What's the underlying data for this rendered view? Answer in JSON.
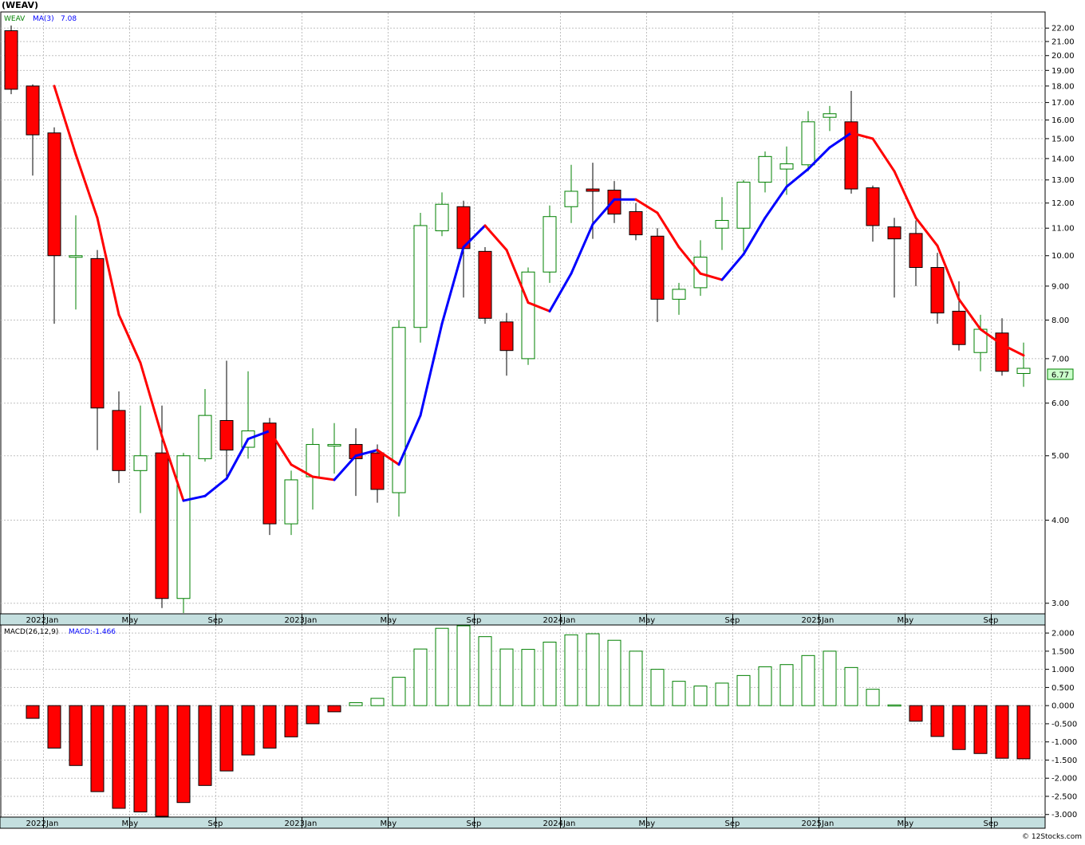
{
  "symbol_title": "(WEAV)",
  "price_legend": {
    "symbol": "WEAV",
    "ma_label": "MA(3)",
    "ma_value": "7.08"
  },
  "macd_legend": {
    "label": "MACD(26,12,9)",
    "value_label": "MACD:-1.466"
  },
  "last_price_label": "6.77",
  "watermark": "© 12Stocks.com",
  "colors": {
    "up": "#008000",
    "down": "#ff0000",
    "ma_up": "#0000ff",
    "ma_down": "#ff0000",
    "grid": "#c0c0c0",
    "band": "#c4dfdf"
  },
  "chart_data": [
    {
      "type": "candlestick",
      "title": "(WEAV)",
      "scale": "log",
      "ylim": [
        2.9,
        23.2
      ],
      "y_ticks": [
        "22.00",
        "21.00",
        "20.00",
        "19.00",
        "18.00",
        "17.00",
        "16.00",
        "15.00",
        "14.00",
        "13.00",
        "12.00",
        "11.00",
        "10.00",
        "9.00",
        "8.00",
        "7.00",
        "6.00",
        "5.00",
        "4.00",
        "3.00"
      ],
      "x_labels": [
        "2022Jan",
        "May",
        "Sep",
        "2023Jan",
        "May",
        "Sep",
        "2024Jan",
        "May",
        "Sep",
        "2025Jan",
        "May",
        "Sep"
      ],
      "months": [
        "2021-11",
        "2021-12",
        "2022-01",
        "2022-02",
        "2022-03",
        "2022-04",
        "2022-05",
        "2022-06",
        "2022-07",
        "2022-08",
        "2022-09",
        "2022-10",
        "2022-11",
        "2022-12",
        "2023-01",
        "2023-02",
        "2023-03",
        "2023-04",
        "2023-05",
        "2023-06",
        "2023-07",
        "2023-08",
        "2023-09",
        "2023-10",
        "2023-11",
        "2023-12",
        "2024-01",
        "2024-02",
        "2024-03",
        "2024-04",
        "2024-05",
        "2024-06",
        "2024-07",
        "2024-08",
        "2024-09",
        "2024-10",
        "2024-11",
        "2024-12",
        "2025-01",
        "2025-02",
        "2025-03",
        "2025-04",
        "2025-05",
        "2025-06",
        "2025-07",
        "2025-08",
        "2025-09",
        "2025-10"
      ],
      "ohlc": [
        [
          21.8,
          22.2,
          17.5,
          17.8
        ],
        [
          18.0,
          18.1,
          13.2,
          15.2
        ],
        [
          15.3,
          15.6,
          7.9,
          10.0
        ],
        [
          10.0,
          11.5,
          8.3,
          10.0
        ],
        [
          9.9,
          10.2,
          5.1,
          5.9
        ],
        [
          5.85,
          6.25,
          4.55,
          4.75
        ],
        [
          4.75,
          5.95,
          4.1,
          5.0
        ],
        [
          5.05,
          5.95,
          2.95,
          3.05
        ],
        [
          3.05,
          5.05,
          2.9,
          5.0
        ],
        [
          4.95,
          6.3,
          4.9,
          5.75
        ],
        [
          5.65,
          6.95,
          4.6,
          5.1
        ],
        [
          5.15,
          6.7,
          4.95,
          5.45
        ],
        [
          5.6,
          5.7,
          3.8,
          3.95
        ],
        [
          3.95,
          4.75,
          3.8,
          4.6
        ],
        [
          4.65,
          5.5,
          4.15,
          5.2
        ],
        [
          5.2,
          5.6,
          4.7,
          5.2
        ],
        [
          5.2,
          5.5,
          4.35,
          4.95
        ],
        [
          5.05,
          5.2,
          4.25,
          4.45
        ],
        [
          4.4,
          8.0,
          4.05,
          7.8
        ],
        [
          7.8,
          11.6,
          7.4,
          11.1
        ],
        [
          10.9,
          12.45,
          10.7,
          11.95
        ],
        [
          11.85,
          12.1,
          8.65,
          10.25
        ],
        [
          10.15,
          10.3,
          7.9,
          8.05
        ],
        [
          7.95,
          8.2,
          6.6,
          7.2
        ],
        [
          7.0,
          9.6,
          6.85,
          9.45
        ],
        [
          9.45,
          11.9,
          9.1,
          11.45
        ],
        [
          11.85,
          13.7,
          11.2,
          12.5
        ],
        [
          12.6,
          13.8,
          10.6,
          12.5
        ],
        [
          12.55,
          12.95,
          11.2,
          11.55
        ],
        [
          11.65,
          12.0,
          10.55,
          10.75
        ],
        [
          10.7,
          11.0,
          7.95,
          8.6
        ],
        [
          8.6,
          9.1,
          8.15,
          8.9
        ],
        [
          8.95,
          10.55,
          8.7,
          9.95
        ],
        [
          11.0,
          12.25,
          10.2,
          11.3
        ],
        [
          11.0,
          13.0,
          10.15,
          12.9
        ],
        [
          12.9,
          14.35,
          12.45,
          14.1
        ],
        [
          13.5,
          14.6,
          12.35,
          13.75
        ],
        [
          13.7,
          16.5,
          13.4,
          15.9
        ],
        [
          16.15,
          16.8,
          15.4,
          16.35
        ],
        [
          15.9,
          17.7,
          12.4,
          12.6
        ],
        [
          12.65,
          12.75,
          10.5,
          11.1
        ],
        [
          11.05,
          11.4,
          8.65,
          10.6
        ],
        [
          10.8,
          11.3,
          9.0,
          9.6
        ],
        [
          9.6,
          10.1,
          7.9,
          8.2
        ],
        [
          8.25,
          9.15,
          7.2,
          7.35
        ],
        [
          7.15,
          8.15,
          6.7,
          7.75
        ],
        [
          7.65,
          8.05,
          6.6,
          6.7
        ],
        [
          6.65,
          7.4,
          6.35,
          6.77
        ]
      ],
      "ma3": [
        null,
        null,
        18.0,
        14.2,
        11.4,
        8.15,
        6.9,
        5.35,
        4.28,
        4.35,
        4.62,
        5.3,
        5.45,
        4.85,
        4.65,
        4.6,
        5.0,
        5.1,
        4.85,
        5.75,
        7.9,
        10.3,
        11.1,
        10.2,
        8.5,
        8.25,
        9.4,
        11.15,
        12.15,
        12.15,
        11.6,
        10.3,
        9.4,
        9.2,
        10.05,
        11.4,
        12.7,
        13.5,
        14.55,
        15.3,
        15.0,
        13.4,
        11.4,
        10.35,
        8.6,
        7.75,
        7.35,
        7.08
      ]
    },
    {
      "type": "bar",
      "title": "MACD(26,12,9)",
      "ylim": [
        -3.05,
        2.2
      ],
      "y_ticks": [
        "2.000",
        "1.500",
        "1.000",
        "0.500",
        "0.000",
        "-0.500",
        "-1.000",
        "-1.500",
        "-2.000",
        "-2.500",
        "-3.000"
      ],
      "x_labels": [
        "2022Jan",
        "May",
        "Sep",
        "2023Jan",
        "May",
        "Sep",
        "2024Jan",
        "May",
        "Sep",
        "2025Jan",
        "May",
        "Sep"
      ],
      "values": [
        null,
        -0.35,
        -1.17,
        -1.65,
        -2.37,
        -2.83,
        -2.93,
        -3.05,
        -2.67,
        -2.2,
        -1.8,
        -1.36,
        -1.17,
        -0.86,
        -0.5,
        -0.17,
        0.08,
        0.2,
        0.78,
        1.56,
        2.13,
        2.2,
        1.9,
        1.56,
        1.55,
        1.75,
        1.95,
        1.98,
        1.8,
        1.5,
        1.0,
        0.67,
        0.54,
        0.62,
        0.83,
        1.07,
        1.13,
        1.38,
        1.5,
        1.05,
        0.45,
        0.02,
        -0.43,
        -0.85,
        -1.21,
        -1.32,
        -1.45,
        -1.466
      ]
    }
  ]
}
